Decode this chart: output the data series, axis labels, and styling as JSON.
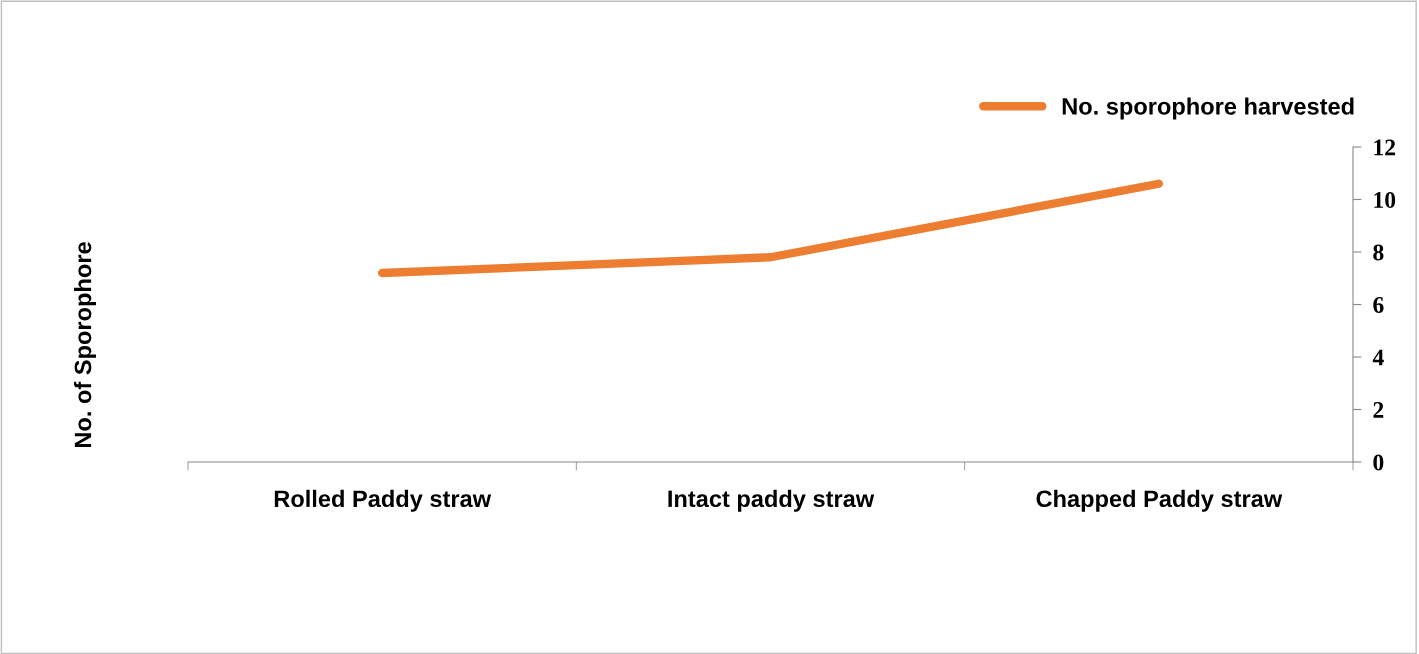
{
  "chart_data": {
    "type": "line",
    "ylabel": "No. of Sporophore",
    "categories": [
      "Rolled Paddy straw",
      "Intact paddy straw",
      "Chapped Paddy straw"
    ],
    "series": [
      {
        "name": "No. sporophore harvested",
        "color": "#ed7d31",
        "values": [
          7.2,
          7.8,
          10.6
        ]
      }
    ],
    "ylim": [
      0,
      12
    ],
    "yticks": [
      0,
      2,
      4,
      6,
      8,
      10,
      12
    ],
    "grid": false,
    "legend": "top right"
  }
}
